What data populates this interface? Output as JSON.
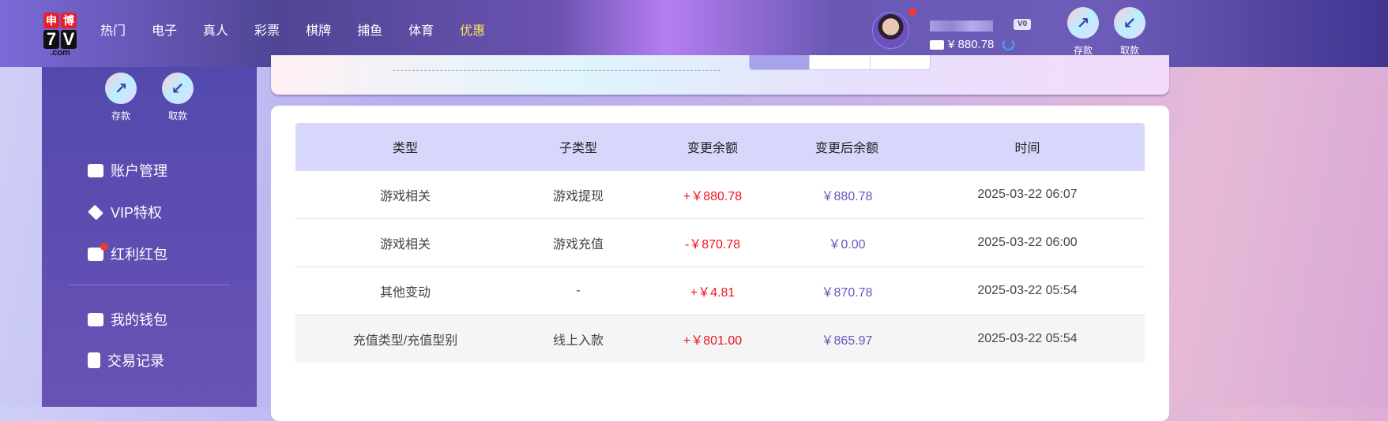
{
  "header": {
    "logo_text": [
      "申",
      "博",
      "7",
      "V",
      ".com"
    ],
    "nav": [
      "热门",
      "电子",
      "真人",
      "彩票",
      "棋牌",
      "捕鱼",
      "体育",
      "优惠"
    ],
    "nav_active": "优惠",
    "vip_badge": "V0",
    "balance": "¥ 880.78",
    "deposit_label": "存款",
    "withdraw_label": "取款"
  },
  "sidebar": {
    "deposit_label": "存款",
    "withdraw_label": "取款",
    "items": [
      {
        "label": "账户管理",
        "icon": "card-icon"
      },
      {
        "label": "VIP特权",
        "icon": "diamond-icon"
      },
      {
        "label": "红利红包",
        "icon": "envelope-icon",
        "badge": true
      },
      {
        "label": "我的钱包",
        "icon": "wallet-icon"
      },
      {
        "label": "交易记录",
        "icon": "document-icon"
      }
    ]
  },
  "table": {
    "columns": [
      "类型",
      "子类型",
      "变更余额",
      "变更后余额",
      "时间"
    ],
    "rows": [
      [
        "游戏相关",
        "游戏提现",
        "+￥880.78",
        "￥880.78",
        "2025-03-22 06:07"
      ],
      [
        "游戏相关",
        "游戏充值",
        "-￥870.78",
        "￥0.00",
        "2025-03-22 06:00"
      ],
      [
        "其他变动",
        "-",
        "+￥4.81",
        "￥870.78",
        "2025-03-22 05:54"
      ],
      [
        "充值类型/充值型别",
        "线上入款",
        "+￥801.00",
        "￥865.97",
        "2025-03-22 05:54"
      ]
    ]
  },
  "colors": {
    "change": "#f0141e",
    "balance_after": "#6655c0",
    "header_bg": "#d7d7fb",
    "accent_nav": "#ffe45c"
  }
}
